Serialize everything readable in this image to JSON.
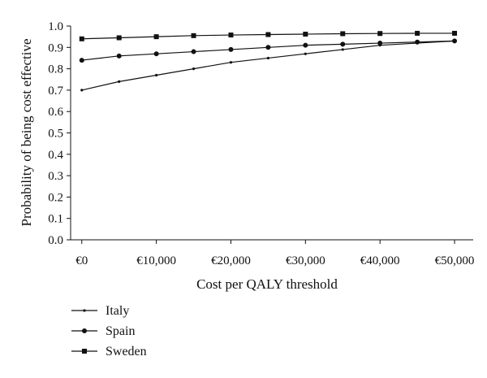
{
  "chart_data": {
    "type": "line",
    "title": "",
    "xlabel": "Cost per QALY threshold",
    "ylabel": "Probability of being cost effective",
    "x": [
      0,
      5000,
      10000,
      15000,
      20000,
      25000,
      30000,
      35000,
      40000,
      45000,
      50000
    ],
    "x_ticks": [
      {
        "value": 0,
        "label": "€0"
      },
      {
        "value": 10000,
        "label": "€10,000"
      },
      {
        "value": 20000,
        "label": "€20,000"
      },
      {
        "value": 30000,
        "label": "€30,000"
      },
      {
        "value": 40000,
        "label": "€40,000"
      },
      {
        "value": 50000,
        "label": "€50,000"
      }
    ],
    "y_ticks": [
      "0.0",
      "0.1",
      "0.2",
      "0.3",
      "0.4",
      "0.5",
      "0.6",
      "0.7",
      "0.8",
      "0.9",
      "1.0"
    ],
    "xlim": [
      -1500,
      52500
    ],
    "ylim": [
      0,
      1.0
    ],
    "grid": false,
    "legend_placement": "bottom-left",
    "series": [
      {
        "name": "Italy",
        "marker": "small-dot",
        "color": "#111111",
        "values": [
          0.7,
          0.74,
          0.77,
          0.8,
          0.83,
          0.85,
          0.87,
          0.89,
          0.91,
          0.92,
          0.93
        ]
      },
      {
        "name": "Spain",
        "marker": "circle",
        "color": "#111111",
        "values": [
          0.84,
          0.86,
          0.87,
          0.88,
          0.89,
          0.9,
          0.91,
          0.915,
          0.92,
          0.925,
          0.93
        ]
      },
      {
        "name": "Sweden",
        "marker": "square",
        "color": "#111111",
        "values": [
          0.94,
          0.945,
          0.95,
          0.955,
          0.958,
          0.96,
          0.962,
          0.964,
          0.965,
          0.966,
          0.966
        ]
      }
    ]
  }
}
